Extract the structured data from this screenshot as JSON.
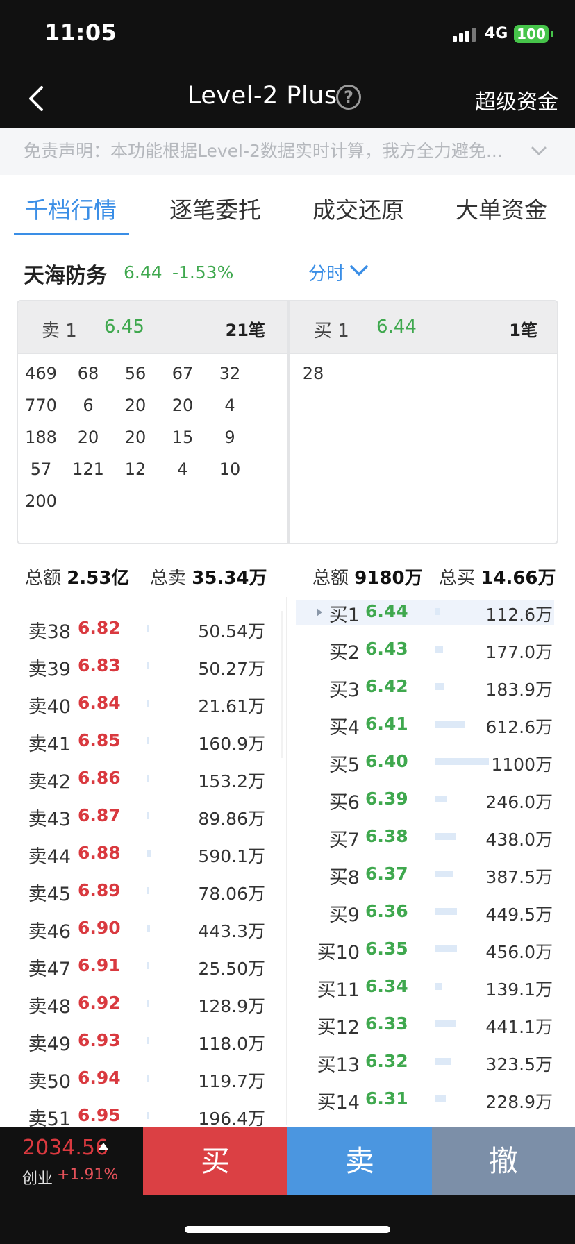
{
  "status_bar": {
    "time": "11:05",
    "network": "4G",
    "battery": "100"
  },
  "nav": {
    "title": "Level-2 Plus",
    "help": "?",
    "right_label": "超级资金"
  },
  "disclaimer": "免责声明：本功能根据Level-2数据实时计算，我方全力避免...",
  "tabs": [
    {
      "label": "千档行情",
      "active": true
    },
    {
      "label": "逐笔委托",
      "active": false
    },
    {
      "label": "成交还原",
      "active": false
    },
    {
      "label": "大单资金",
      "active": false
    }
  ],
  "stock": {
    "name": "天海防务",
    "price": "6.44",
    "change": "-1.53%",
    "period": "分时"
  },
  "queue": {
    "sell_label": "卖 1",
    "sell_price": "6.45",
    "sell_count": "21笔",
    "sell_orders": [
      "469",
      "68",
      "56",
      "67",
      "32",
      "770",
      "6",
      "20",
      "20",
      "4",
      "188",
      "20",
      "20",
      "15",
      "9",
      "57",
      "121",
      "12",
      "4",
      "10",
      "200"
    ],
    "buy_label": "买 1",
    "buy_price": "6.44",
    "buy_count": "1笔",
    "buy_orders": [
      "28"
    ]
  },
  "totals": {
    "sell_total_label": "总额",
    "sell_total_value": "2.53亿",
    "sell_sum_label": "总卖",
    "sell_sum_value": "35.34万",
    "buy_total_label": "总额",
    "buy_total_value": "9180万",
    "buy_sum_label": "总买",
    "buy_sum_value": "14.66万"
  },
  "sell_book": [
    {
      "label": "卖38",
      "price": "6.82",
      "amount": "50.54万",
      "bar": 0.005
    },
    {
      "label": "卖39",
      "price": "6.83",
      "amount": "50.27万",
      "bar": 0.005
    },
    {
      "label": "卖40",
      "price": "6.84",
      "amount": "21.61万",
      "bar": 0.003
    },
    {
      "label": "卖41",
      "price": "6.85",
      "amount": "160.9万",
      "bar": 0.02
    },
    {
      "label": "卖42",
      "price": "6.86",
      "amount": "153.2万",
      "bar": 0.02
    },
    {
      "label": "卖43",
      "price": "6.87",
      "amount": "89.86万",
      "bar": 0.01
    },
    {
      "label": "卖44",
      "price": "6.88",
      "amount": "590.1万",
      "bar": 0.08
    },
    {
      "label": "卖45",
      "price": "6.89",
      "amount": "78.06万",
      "bar": 0.01
    },
    {
      "label": "卖46",
      "price": "6.90",
      "amount": "443.3万",
      "bar": 0.06
    },
    {
      "label": "卖47",
      "price": "6.91",
      "amount": "25.50万",
      "bar": 0.003
    },
    {
      "label": "卖48",
      "price": "6.92",
      "amount": "128.9万",
      "bar": 0.015
    },
    {
      "label": "卖49",
      "price": "6.93",
      "amount": "118.0万",
      "bar": 0.015
    },
    {
      "label": "卖50",
      "price": "6.94",
      "amount": "119.7万",
      "bar": 0.015
    },
    {
      "label": "卖51",
      "price": "6.95",
      "amount": "196.4万",
      "bar": 0.02
    }
  ],
  "buy_book": [
    {
      "label": "买1",
      "price": "6.44",
      "amount": "112.6万",
      "bar": 0.1
    },
    {
      "label": "买2",
      "price": "6.43",
      "amount": "177.0万",
      "bar": 0.16
    },
    {
      "label": "买3",
      "price": "6.42",
      "amount": "183.9万",
      "bar": 0.17
    },
    {
      "label": "买4",
      "price": "6.41",
      "amount": "612.6万",
      "bar": 0.56
    },
    {
      "label": "买5",
      "price": "6.40",
      "amount": "1100万",
      "bar": 1.0
    },
    {
      "label": "买6",
      "price": "6.39",
      "amount": "246.0万",
      "bar": 0.22
    },
    {
      "label": "买7",
      "price": "6.38",
      "amount": "438.0万",
      "bar": 0.4
    },
    {
      "label": "买8",
      "price": "6.37",
      "amount": "387.5万",
      "bar": 0.35
    },
    {
      "label": "买9",
      "price": "6.36",
      "amount": "449.5万",
      "bar": 0.41
    },
    {
      "label": "买10",
      "price": "6.35",
      "amount": "456.0万",
      "bar": 0.41
    },
    {
      "label": "买11",
      "price": "6.34",
      "amount": "139.1万",
      "bar": 0.13
    },
    {
      "label": "买12",
      "price": "6.33",
      "amount": "441.1万",
      "bar": 0.4
    },
    {
      "label": "买13",
      "price": "6.32",
      "amount": "323.5万",
      "bar": 0.29
    },
    {
      "label": "买14",
      "price": "6.31",
      "amount": "228.9万",
      "bar": 0.21
    }
  ],
  "index": {
    "value": "2034.56",
    "name": "创业",
    "change": "+1.91%"
  },
  "actions": {
    "buy": "买",
    "sell": "卖",
    "cancel": "撤"
  },
  "colors": {
    "down_green": "#3fa84e",
    "up_red": "#d9393f",
    "accent_blue": "#3a8ee6",
    "buy_button": "#db4044",
    "sell_button": "#4b96e0",
    "cancel_button": "#7c8fa8"
  }
}
